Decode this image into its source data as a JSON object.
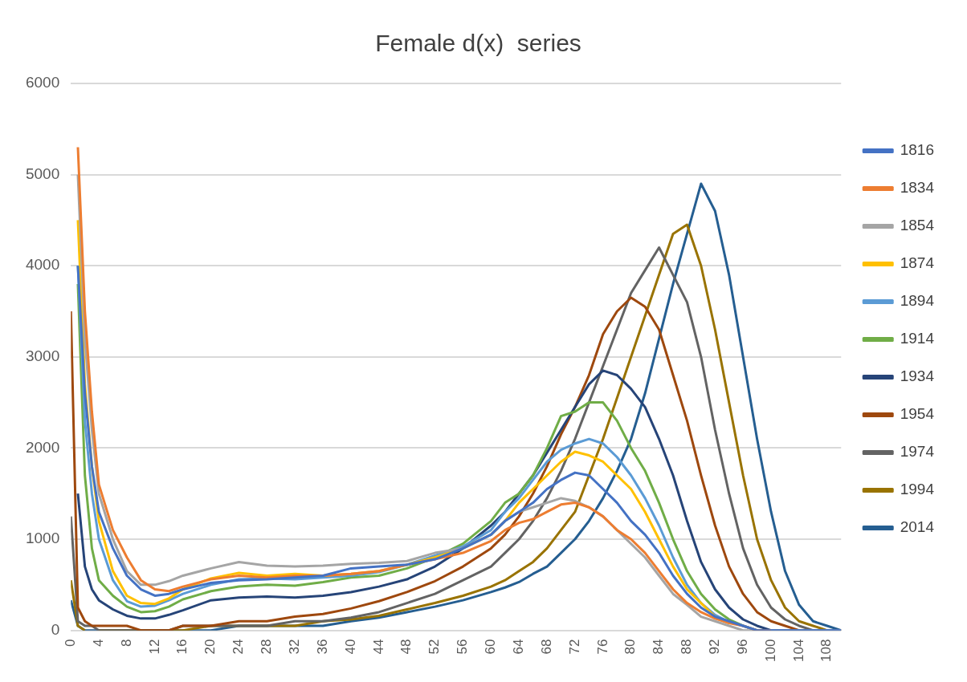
{
  "chart_data": {
    "type": "line",
    "title": "Female d(x)  series",
    "x": [
      0,
      1,
      2,
      3,
      4,
      6,
      8,
      10,
      12,
      14,
      16,
      20,
      24,
      28,
      32,
      36,
      40,
      44,
      48,
      52,
      56,
      60,
      62,
      64,
      66,
      68,
      70,
      72,
      74,
      76,
      78,
      80,
      82,
      84,
      86,
      88,
      90,
      92,
      94,
      96,
      98,
      100,
      102,
      104,
      106,
      108,
      110
    ],
    "xlim": [
      0,
      110
    ],
    "xticks": [
      0,
      4,
      8,
      12,
      16,
      20,
      24,
      28,
      32,
      36,
      40,
      44,
      48,
      52,
      56,
      60,
      64,
      68,
      72,
      76,
      80,
      84,
      88,
      92,
      96,
      100,
      104,
      108
    ],
    "ylim": [
      0,
      6000
    ],
    "yticks": [
      0,
      1000,
      2000,
      3000,
      4000,
      5000,
      6000
    ],
    "grid": "y",
    "legend": "right",
    "series": [
      {
        "name": "1816",
        "color": "#4472c4",
        "values": [
          null,
          4000,
          2600,
          1800,
          1300,
          900,
          600,
          450,
          380,
          400,
          450,
          520,
          550,
          560,
          580,
          600,
          680,
          700,
          720,
          780,
          900,
          1050,
          1200,
          1300,
          1400,
          1550,
          1650,
          1730,
          1700,
          1550,
          1400,
          1200,
          1050,
          850,
          600,
          400,
          250,
          150,
          100,
          50,
          0,
          0,
          0,
          0,
          0,
          0,
          0
        ]
      },
      {
        "name": "1834",
        "color": "#ed7d31",
        "values": [
          null,
          5300,
          3500,
          2400,
          1600,
          1100,
          800,
          550,
          450,
          430,
          480,
          560,
          600,
          580,
          600,
          600,
          620,
          650,
          720,
          780,
          850,
          980,
          1100,
          1180,
          1220,
          1300,
          1380,
          1400,
          1350,
          1250,
          1100,
          1000,
          850,
          650,
          450,
          300,
          200,
          130,
          80,
          50,
          0,
          0,
          null,
          null,
          null,
          null,
          null
        ]
      },
      {
        "name": "1854",
        "color": "#a5a5a5",
        "values": [
          null,
          5000,
          3200,
          2200,
          1500,
          1000,
          650,
          500,
          500,
          540,
          600,
          680,
          750,
          710,
          700,
          710,
          730,
          740,
          760,
          850,
          900,
          1050,
          1200,
          1300,
          1350,
          1400,
          1450,
          1420,
          1350,
          1250,
          1100,
          950,
          800,
          600,
          400,
          280,
          150,
          100,
          50,
          0,
          0,
          0,
          0,
          0,
          0,
          0,
          0
        ]
      },
      {
        "name": "1874",
        "color": "#ffc000",
        "values": [
          null,
          4500,
          2700,
          1800,
          1200,
          650,
          380,
          300,
          290,
          350,
          450,
          570,
          630,
          600,
          620,
          600,
          620,
          650,
          720,
          800,
          900,
          1050,
          1200,
          1400,
          1550,
          1700,
          1850,
          1960,
          1920,
          1850,
          1700,
          1550,
          1300,
          1000,
          700,
          450,
          300,
          150,
          80,
          null,
          null,
          null,
          null,
          null,
          null,
          null,
          null
        ]
      },
      {
        "name": "1894",
        "color": "#5b9bd5",
        "values": [
          null,
          4000,
          2300,
          1500,
          1000,
          550,
          320,
          260,
          270,
          330,
          400,
          500,
          560,
          570,
          560,
          580,
          600,
          640,
          720,
          820,
          920,
          1100,
          1300,
          1450,
          1650,
          1850,
          1980,
          2050,
          2100,
          2050,
          1900,
          1700,
          1450,
          1150,
          800,
          500,
          300,
          170,
          90,
          50,
          0,
          0,
          0,
          0,
          0,
          0,
          0
        ]
      },
      {
        "name": "1914",
        "color": "#70ad47",
        "values": [
          null,
          3800,
          1700,
          900,
          550,
          380,
          260,
          200,
          210,
          260,
          340,
          430,
          480,
          500,
          490,
          530,
          580,
          600,
          680,
          800,
          950,
          1200,
          1400,
          1500,
          1700,
          2000,
          2350,
          2400,
          2500,
          2500,
          2300,
          2000,
          1750,
          1400,
          1000,
          650,
          400,
          230,
          120,
          50,
          0,
          null,
          null,
          null,
          null,
          null,
          null
        ]
      },
      {
        "name": "1934",
        "color": "#264478",
        "values": [
          null,
          1500,
          700,
          450,
          330,
          230,
          160,
          130,
          130,
          170,
          220,
          330,
          360,
          370,
          360,
          380,
          420,
          480,
          560,
          700,
          900,
          1150,
          1300,
          1500,
          1700,
          1950,
          2200,
          2450,
          2700,
          2850,
          2800,
          2650,
          2450,
          2100,
          1700,
          1200,
          750,
          450,
          250,
          120,
          50,
          0,
          0,
          0,
          0,
          0,
          0
        ]
      },
      {
        "name": "1954",
        "color": "#9e480e",
        "values": [
          3500,
          250,
          100,
          50,
          50,
          50,
          50,
          0,
          0,
          0,
          50,
          50,
          100,
          100,
          150,
          180,
          240,
          320,
          420,
          540,
          700,
          900,
          1050,
          1250,
          1500,
          1800,
          2150,
          2450,
          2800,
          3250,
          3500,
          3650,
          3550,
          3300,
          2800,
          2300,
          1700,
          1150,
          700,
          400,
          200,
          100,
          50,
          0,
          0,
          0,
          0
        ]
      },
      {
        "name": "1974",
        "color": "#636363",
        "values": [
          1250,
          100,
          50,
          50,
          0,
          0,
          0,
          0,
          0,
          0,
          50,
          50,
          50,
          50,
          100,
          100,
          140,
          200,
          300,
          400,
          550,
          700,
          850,
          1000,
          1200,
          1450,
          1750,
          2100,
          2500,
          2900,
          3300,
          3700,
          3950,
          4200,
          3900,
          3600,
          3000,
          2200,
          1500,
          900,
          500,
          250,
          120,
          50,
          0,
          0,
          0
        ]
      },
      {
        "name": "1994",
        "color": "#997300",
        "values": [
          550,
          50,
          0,
          null,
          0,
          0,
          0,
          0,
          0,
          0,
          0,
          50,
          50,
          50,
          50,
          100,
          120,
          160,
          230,
          300,
          380,
          480,
          550,
          650,
          750,
          900,
          1100,
          1300,
          1700,
          2100,
          2550,
          3000,
          3450,
          3900,
          4350,
          4450,
          4000,
          3300,
          2500,
          1700,
          1000,
          550,
          250,
          100,
          50,
          0,
          0
        ]
      },
      {
        "name": "2014",
        "color": "#255e91",
        "values": [
          330,
          50,
          0,
          0,
          0,
          0,
          0,
          0,
          0,
          0,
          0,
          0,
          50,
          50,
          50,
          50,
          100,
          140,
          200,
          260,
          330,
          420,
          470,
          530,
          620,
          700,
          850,
          1000,
          1200,
          1450,
          1750,
          2100,
          2600,
          3200,
          3800,
          4350,
          4900,
          4600,
          3900,
          3000,
          2100,
          1300,
          650,
          280,
          100,
          50,
          0
        ]
      }
    ]
  }
}
